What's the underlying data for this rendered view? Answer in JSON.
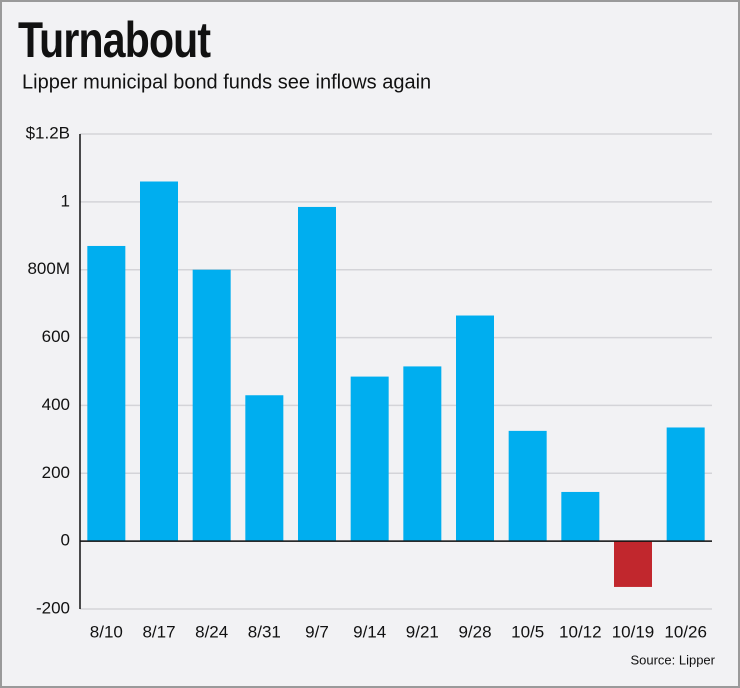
{
  "chart_data": {
    "type": "bar",
    "title": "Turnabout",
    "subtitle": "Lipper municipal bond funds see inflows again",
    "source": "Source: Lipper",
    "categories": [
      "8/10",
      "8/17",
      "8/24",
      "8/31",
      "9/7",
      "9/14",
      "9/21",
      "9/28",
      "10/5",
      "10/12",
      "10/19",
      "10/26"
    ],
    "values": [
      870,
      1060,
      800,
      430,
      985,
      485,
      515,
      665,
      325,
      145,
      -135,
      335
    ],
    "colors": [
      "#00aeef",
      "#00aeef",
      "#00aeef",
      "#00aeef",
      "#00aeef",
      "#00aeef",
      "#00aeef",
      "#00aeef",
      "#00aeef",
      "#00aeef",
      "#c1272d",
      "#00aeef"
    ],
    "ylim": [
      -200,
      1200
    ],
    "yticks": [
      -200,
      0,
      200,
      400,
      600,
      {
        "value": 800,
        "label": "800M"
      },
      {
        "value": 1000,
        "label": "1"
      },
      {
        "value": 1200,
        "label": "$1.2B"
      }
    ],
    "grid": true
  }
}
